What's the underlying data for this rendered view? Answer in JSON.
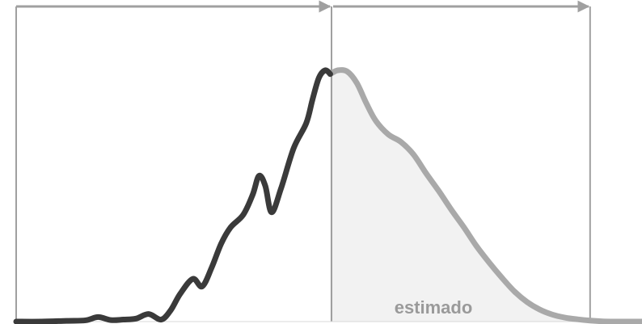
{
  "chart_data": {
    "type": "line",
    "title": "",
    "xlabel": "",
    "ylabel": "",
    "xlim": [
      0,
      100
    ],
    "ylim": [
      0,
      100
    ],
    "grid": false,
    "legend": "none",
    "annotations": [
      {
        "text": "estimado"
      }
    ],
    "series": [
      {
        "style": "observed",
        "color": "#3a3a3a",
        "x": [
          0,
          4,
          8,
          11,
          13,
          15,
          17,
          19,
          21,
          23,
          24.5,
          26,
          28,
          29.5,
          31,
          32.5,
          34,
          36,
          37.5,
          38.5,
          39.5,
          40.5,
          42,
          44,
          46,
          47,
          48,
          49,
          49.8
        ],
        "y": [
          0,
          0,
          0.3,
          0.5,
          1.8,
          0.6,
          0.8,
          1.2,
          3.0,
          0.8,
          4.5,
          11.0,
          17.0,
          14.0,
          21.5,
          31.0,
          37.5,
          42.5,
          50.5,
          58.0,
          54.0,
          43.5,
          53.0,
          69.0,
          79.0,
          88.5,
          97.0,
          100.0,
          98.5
        ]
      },
      {
        "style": "estimated",
        "color": "#a9a9a9",
        "fill": "#f2f2f2",
        "x": [
          49.8,
          51,
          52.5,
          54,
          55.5,
          57,
          59,
          61,
          63,
          65,
          67,
          69,
          71,
          73,
          75,
          77,
          79,
          81,
          83,
          85,
          87,
          89,
          91,
          93,
          95,
          97,
          99,
          100
        ],
        "y": [
          98.5,
          100.0,
          99.5,
          95.0,
          87.0,
          80.0,
          74.5,
          71.5,
          66.5,
          59.0,
          52.0,
          44.5,
          37.5,
          30.0,
          23.5,
          17.5,
          12.0,
          7.8,
          4.8,
          2.8,
          1.6,
          0.9,
          0.4,
          0.1,
          0,
          0,
          0,
          0
        ]
      }
    ],
    "markers": {
      "vlines": [
        0,
        50,
        91
      ],
      "arrows": [
        {
          "from": 0,
          "to": 50
        },
        {
          "from": 50,
          "to": 91
        }
      ]
    }
  },
  "colors": {
    "observed": "#3a3a3a",
    "estimated": "#a9a9a9",
    "area_fill": "#f2f2f2",
    "guide": "#a0a0a0",
    "label": "#9a9a9a"
  }
}
